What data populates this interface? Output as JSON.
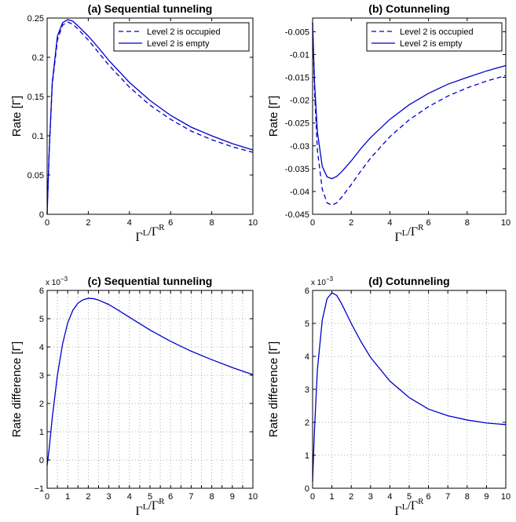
{
  "chart_data": [
    {
      "id": "a",
      "type": "line",
      "title": "(a) Sequential tunneling",
      "xlabel": "Γ^L/Γ^R",
      "ylabel": "Rate [Γ]",
      "xlim": [
        0,
        10
      ],
      "ylim": [
        0,
        0.25
      ],
      "xticks": [
        0,
        2,
        4,
        6,
        8,
        10
      ],
      "yticks": [
        0,
        0.05,
        0.1,
        0.15,
        0.2,
        0.25
      ],
      "ytick_labels": [
        "0",
        "0.05",
        "0.1",
        "0.15",
        "0.2",
        "0.25"
      ],
      "grid": false,
      "legend_position": "top-right",
      "exponent_label": "",
      "series": [
        {
          "name": "Level 2 is occupied",
          "style": "dashed",
          "color": "#0000cc",
          "x": [
            0,
            0.1,
            0.25,
            0.5,
            0.75,
            1.0,
            1.25,
            1.5,
            2,
            2.5,
            3,
            4,
            5,
            6,
            7,
            8,
            9,
            10
          ],
          "y": [
            0,
            0.08,
            0.165,
            0.222,
            0.241,
            0.245,
            0.242,
            0.236,
            0.222,
            0.206,
            0.19,
            0.162,
            0.139,
            0.121,
            0.106,
            0.095,
            0.086,
            0.079
          ]
        },
        {
          "name": "Level 2 is empty",
          "style": "solid",
          "color": "#0000cc",
          "x": [
            0,
            0.1,
            0.25,
            0.5,
            0.75,
            1.0,
            1.25,
            1.5,
            2,
            2.5,
            3,
            4,
            5,
            6,
            7,
            8,
            9,
            10
          ],
          "y": [
            0,
            0.08,
            0.168,
            0.227,
            0.244,
            0.248,
            0.246,
            0.24,
            0.227,
            0.212,
            0.196,
            0.168,
            0.145,
            0.126,
            0.111,
            0.1,
            0.09,
            0.082
          ]
        }
      ]
    },
    {
      "id": "b",
      "type": "line",
      "title": "(b) Cotunneling",
      "xlabel": "Γ^L/Γ^R",
      "ylabel": "Rate [Γ]",
      "xlim": [
        0,
        10
      ],
      "ylim": [
        -0.045,
        -0.002
      ],
      "xticks": [
        0,
        2,
        4,
        6,
        8,
        10
      ],
      "yticks": [
        -0.045,
        -0.04,
        -0.035,
        -0.03,
        -0.025,
        -0.02,
        -0.015,
        -0.01,
        -0.005
      ],
      "ytick_labels": [
        "-0.045",
        "-0.04",
        "-0.035",
        "-0.03",
        "-0.025",
        "-0.02",
        "-0.015",
        "-0.01",
        "-0.005"
      ],
      "grid": false,
      "legend_position": "top-right",
      "exponent_label": "",
      "series": [
        {
          "name": "Level 2 is occupied",
          "style": "dashed",
          "color": "#0000cc",
          "x": [
            0,
            0.1,
            0.25,
            0.5,
            0.75,
            1.0,
            1.25,
            1.5,
            2,
            2.5,
            3,
            4,
            5,
            6,
            7,
            8,
            9,
            10
          ],
          "y": [
            -0.003,
            -0.018,
            -0.031,
            -0.0395,
            -0.0425,
            -0.043,
            -0.0425,
            -0.0413,
            -0.0385,
            -0.0355,
            -0.0327,
            -0.028,
            -0.0243,
            -0.0214,
            -0.0191,
            -0.0173,
            -0.0158,
            -0.0146
          ]
        },
        {
          "name": "Level 2 is empty",
          "style": "solid",
          "color": "#0000cc",
          "x": [
            0,
            0.1,
            0.25,
            0.5,
            0.75,
            1.0,
            1.25,
            1.5,
            2,
            2.5,
            3,
            4,
            5,
            6,
            7,
            8,
            9,
            10
          ],
          "y": [
            -0.003,
            -0.016,
            -0.027,
            -0.0345,
            -0.0368,
            -0.0372,
            -0.0367,
            -0.0357,
            -0.0333,
            -0.0306,
            -0.0282,
            -0.0242,
            -0.021,
            -0.0185,
            -0.0165,
            -0.015,
            -0.0136,
            -0.0124
          ]
        }
      ]
    },
    {
      "id": "c",
      "type": "line",
      "title": "(c) Sequential tunneling",
      "xlabel": "Γ^L/Γ^R",
      "ylabel": "Rate difference [Γ]",
      "xlim": [
        0,
        10
      ],
      "ylim": [
        -1,
        6
      ],
      "xticks": [
        0,
        0.5,
        1,
        1.5,
        2,
        2.5,
        3,
        3.5,
        4,
        4.5,
        5,
        5.5,
        6,
        6.5,
        7,
        7.5,
        8,
        8.5,
        9,
        9.5,
        10
      ],
      "xtick_labels": [
        "0",
        "1",
        "2",
        "3",
        "4",
        "5",
        "6",
        "7",
        "8",
        "9",
        "10"
      ],
      "yticks": [
        -1,
        0,
        1,
        2,
        3,
        4,
        5,
        6
      ],
      "ytick_labels": [
        "−1",
        "0",
        "1",
        "2",
        "3",
        "4",
        "5",
        "6"
      ],
      "grid": true,
      "legend_position": "none",
      "exponent_label": "x 10",
      "exponent_power": "−3",
      "series": [
        {
          "style": "solid",
          "color": "#0000cc",
          "x": [
            0,
            0.1,
            0.25,
            0.5,
            0.75,
            1.0,
            1.25,
            1.5,
            1.75,
            2.0,
            2.25,
            2.5,
            3,
            3.5,
            4,
            5,
            6,
            7,
            8,
            9,
            10
          ],
          "y": [
            -0.2,
            0.4,
            1.5,
            3.0,
            4.1,
            4.85,
            5.3,
            5.55,
            5.67,
            5.72,
            5.71,
            5.66,
            5.5,
            5.28,
            5.05,
            4.6,
            4.2,
            3.85,
            3.55,
            3.27,
            3.02
          ]
        }
      ]
    },
    {
      "id": "d",
      "type": "line",
      "title": "(d) Cotunneling",
      "xlabel": "Γ^L/Γ^R",
      "ylabel": "Rate difference [Γ]",
      "xlim": [
        0,
        10
      ],
      "ylim": [
        0,
        6
      ],
      "xticks": [
        0,
        1,
        2,
        3,
        4,
        5,
        6,
        7,
        8,
        9,
        10
      ],
      "yticks": [
        0,
        1,
        2,
        3,
        4,
        5,
        6
      ],
      "ytick_labels": [
        "0",
        "1",
        "2",
        "3",
        "4",
        "5",
        "6"
      ],
      "grid": true,
      "legend_position": "none",
      "exponent_label": "x 10",
      "exponent_power": "−3",
      "series": [
        {
          "style": "solid",
          "color": "#0000cc",
          "x": [
            0,
            0.05,
            0.1,
            0.25,
            0.5,
            0.75,
            1.0,
            1.25,
            1.5,
            2,
            2.5,
            3,
            4,
            5,
            6,
            7,
            8,
            9,
            10
          ],
          "y": [
            0.2,
            1.0,
            1.8,
            3.6,
            5.1,
            5.75,
            5.93,
            5.85,
            5.6,
            5.0,
            4.45,
            3.97,
            3.25,
            2.75,
            2.4,
            2.2,
            2.07,
            1.98,
            1.93
          ]
        }
      ]
    }
  ]
}
